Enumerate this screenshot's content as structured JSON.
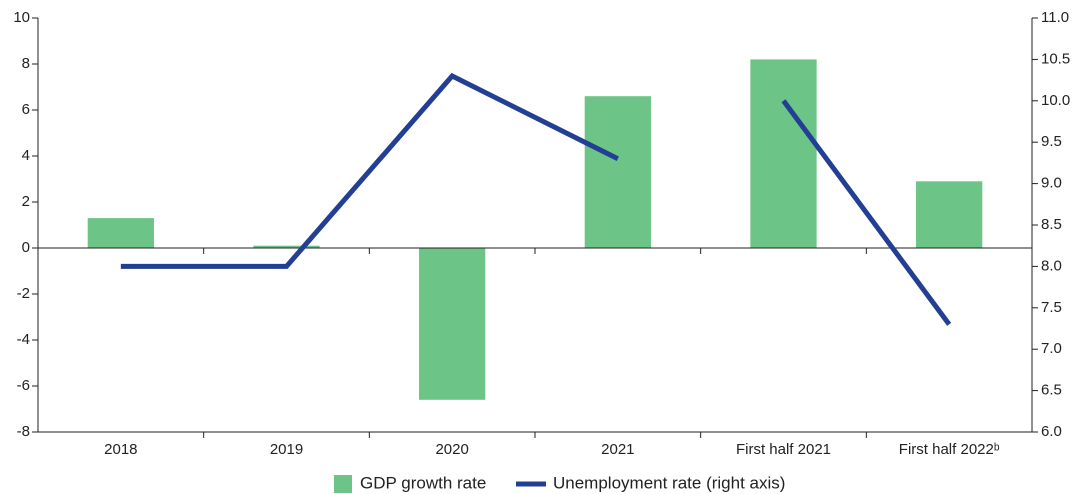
{
  "chart_data": {
    "type": "bar-line",
    "categories": [
      "2018",
      "2019",
      "2020",
      "2021",
      "First half 2021",
      "First half 2022ᵇ"
    ],
    "series": [
      {
        "name": "GDP growth rate",
        "type": "bar",
        "color": "#6cc486",
        "values": [
          1.3,
          0.1,
          -6.6,
          6.6,
          8.2,
          2.9
        ]
      },
      {
        "name": "Unemployment rate (right axis)",
        "type": "line",
        "axis": "y2",
        "color": "#233f94",
        "values": [
          8.0,
          8.0,
          10.3,
          9.3,
          10.0,
          7.3
        ],
        "gap_after": [
          3
        ]
      }
    ],
    "ylim": [
      -8,
      10
    ],
    "yticks": [
      -8,
      -6,
      -4,
      -2,
      0,
      2,
      4,
      6,
      8,
      10
    ],
    "y2lim": [
      6,
      11
    ],
    "y2ticks": [
      {
        "value": 6,
        "label": "6.0"
      },
      6.5,
      {
        "value": 7,
        "label": "7.0"
      },
      7.5,
      {
        "value": 8,
        "label": "8.0"
      },
      8.5,
      {
        "value": 9,
        "label": "9.0"
      },
      9.5,
      {
        "value": 10,
        "label": "10.0"
      },
      10.5,
      {
        "value": 11,
        "label": "11.0"
      }
    ],
    "grid": false,
    "legend": "bottom"
  }
}
